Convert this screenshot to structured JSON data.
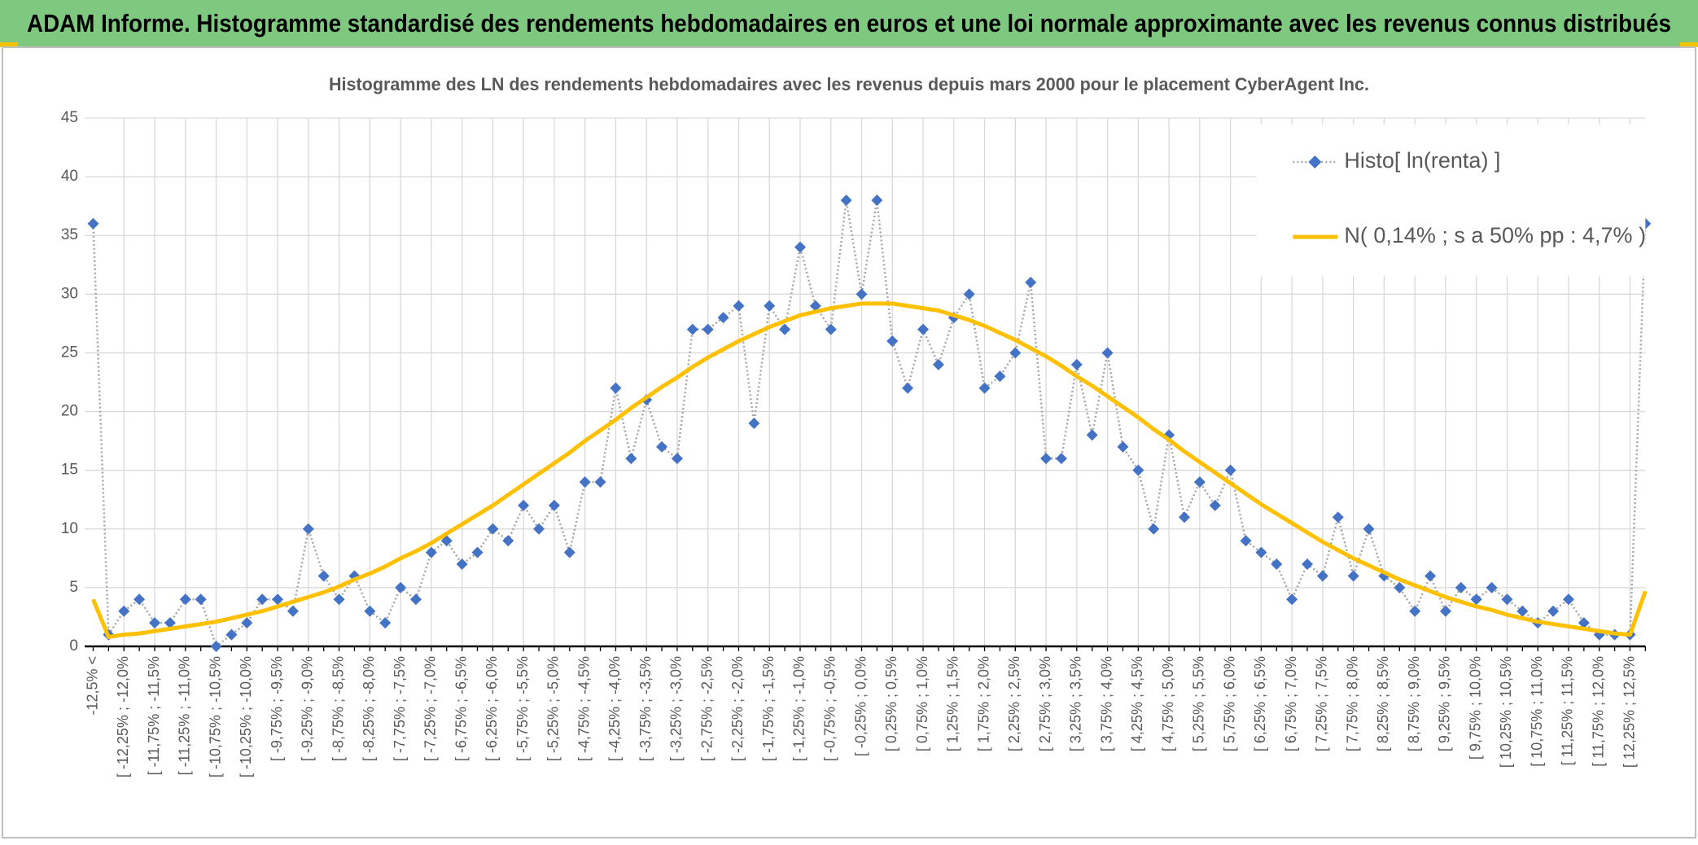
{
  "header": {
    "title": "ADAM Informe. Histogramme standardisé des rendements hebdomadaires en euros et une loi normale approximante avec les revenus connus distribués"
  },
  "chart_data": {
    "type": "line",
    "title": "Histogramme des LN des rendements hebdomadaires avec les revenus depuis mars 2000 pour le placement CyberAgent Inc.",
    "categories": [
      "-12,5% <",
      null,
      "[ -12,25% ; -12,0%",
      null,
      "[ -11,75% ; -11,5%",
      null,
      "[ -11,25% ; -11,0%",
      null,
      "[ -10,75% ; -10,5%",
      null,
      "[ -10,25% ; -10,0%",
      null,
      "[ -9,75% ; -9,5%",
      null,
      "[ -9,25% ; -9,0%",
      null,
      "[ -8,75% ; -8,5%",
      null,
      "[ -8,25% ; -8,0%",
      null,
      "[ -7,75% ; -7,5%",
      null,
      "[ -7,25% ; -7,0%",
      null,
      "[ -6,75% ; -6,5%",
      null,
      "[ -6,25% ; -6,0%",
      null,
      "[ -5,75% ; -5,5%",
      null,
      "[ -5,25% ; -5,0%",
      null,
      "[ -4,75% ; -4,5%",
      null,
      "[ -4,25% ; -4,0%",
      null,
      "[ -3,75% ; -3,5%",
      null,
      "[ -3,25% ; -3,0%",
      null,
      "[ -2,75% ; -2,5%",
      null,
      "[ -2,25% ; -2,0%",
      null,
      "[ -1,75% ; -1,5%",
      null,
      "[ -1,25% ; -1,0%",
      null,
      "[ -0,75% ; -0,5%",
      null,
      "[ -0,25% ; 0,0%",
      null,
      "[ 0,25% ; 0,5%",
      null,
      "[ 0,75% ; 1,0%",
      null,
      "[ 1,25% ; 1,5%",
      null,
      "[ 1,75% ; 2,0%",
      null,
      "[ 2,25% ; 2,5%",
      null,
      "[ 2,75% ; 3,0%",
      null,
      "[ 3,25% ; 3,5%",
      null,
      "[ 3,75% ; 4,0%",
      null,
      "[ 4,25% ; 4,5%",
      null,
      "[ 4,75% ; 5,0%",
      null,
      "[ 5,25% ; 5,5%",
      null,
      "[ 5,75% ; 6,0%",
      null,
      "[ 6,25% ; 6,5%",
      null,
      "[ 6,75% ; 7,0%",
      null,
      "[ 7,25% ; 7,5%",
      null,
      "[ 7,75% ; 8,0%",
      null,
      "[ 8,25% ; 8,5%",
      null,
      "[ 8,75% ; 9,0%",
      null,
      "[ 9,25% ; 9,5%",
      null,
      "[ 9,75% ; 10,0%",
      null,
      "[ 10,25% ; 10,5%",
      null,
      "[ 10,75% ; 11,0%",
      null,
      "[ 11,25% ; 11,5%",
      null,
      "[ 11,75% ; 12,0%",
      null,
      "[ 12,25% ; 12,5%",
      null
    ],
    "series": [
      {
        "name": "Histo[ ln(renta) ]",
        "color": "#4472c4",
        "line_color": "#a6a6a6",
        "values": [
          36,
          1,
          3,
          4,
          2,
          2,
          4,
          4,
          0,
          1,
          2,
          4,
          4,
          3,
          10,
          6,
          4,
          6,
          3,
          2,
          5,
          4,
          8,
          9,
          7,
          8,
          10,
          9,
          12,
          10,
          12,
          8,
          14,
          14,
          22,
          16,
          21,
          17,
          16,
          27,
          27,
          28,
          29,
          19,
          29,
          27,
          34,
          29,
          27,
          38,
          30,
          38,
          26,
          22,
          27,
          24,
          28,
          30,
          22,
          23,
          25,
          31,
          16,
          16,
          24,
          18,
          25,
          17,
          15,
          10,
          18,
          11,
          14,
          12,
          15,
          9,
          8,
          7,
          4,
          7,
          6,
          11,
          6,
          10,
          6,
          5,
          3,
          6,
          3,
          5,
          4,
          5,
          4,
          3,
          2,
          3,
          4,
          2,
          1,
          1,
          1,
          36
        ]
      },
      {
        "name": "N( 0,14% ; s a 50% pp : 4,7% )",
        "color": "#ffc000",
        "values": [
          4,
          0.8,
          1.0,
          1.1,
          1.3,
          1.5,
          1.7,
          1.9,
          2.1,
          2.4,
          2.7,
          3.0,
          3.4,
          3.8,
          4.2,
          4.6,
          5.1,
          5.7,
          6.2,
          6.8,
          7.5,
          8.1,
          8.8,
          9.6,
          10.4,
          11.2,
          12.0,
          12.9,
          13.8,
          14.7,
          15.6,
          16.5,
          17.5,
          18.4,
          19.3,
          20.3,
          21.2,
          22.1,
          22.9,
          23.8,
          24.6,
          25.3,
          26.0,
          26.6,
          27.2,
          27.7,
          28.2,
          28.5,
          28.8,
          29.0,
          29.2,
          29.2,
          29.2,
          29.0,
          28.8,
          28.6,
          28.2,
          27.8,
          27.3,
          26.7,
          26.1,
          25.4,
          24.7,
          23.9,
          23.0,
          22.2,
          21.3,
          20.4,
          19.5,
          18.5,
          17.6,
          16.6,
          15.7,
          14.8,
          13.9,
          13.0,
          12.1,
          11.3,
          10.5,
          9.7,
          8.9,
          8.2,
          7.5,
          6.9,
          6.3,
          5.7,
          5.2,
          4.7,
          4.2,
          3.8,
          3.4,
          3.1,
          2.7,
          2.4,
          2.1,
          1.9,
          1.7,
          1.5,
          1.3,
          1.1,
          1.0,
          4.7
        ]
      }
    ],
    "ylim": [
      0,
      45
    ],
    "yticks": [
      0,
      5,
      10,
      15,
      20,
      25,
      30,
      35,
      40,
      45
    ],
    "grid": true,
    "legend": "upper right"
  }
}
